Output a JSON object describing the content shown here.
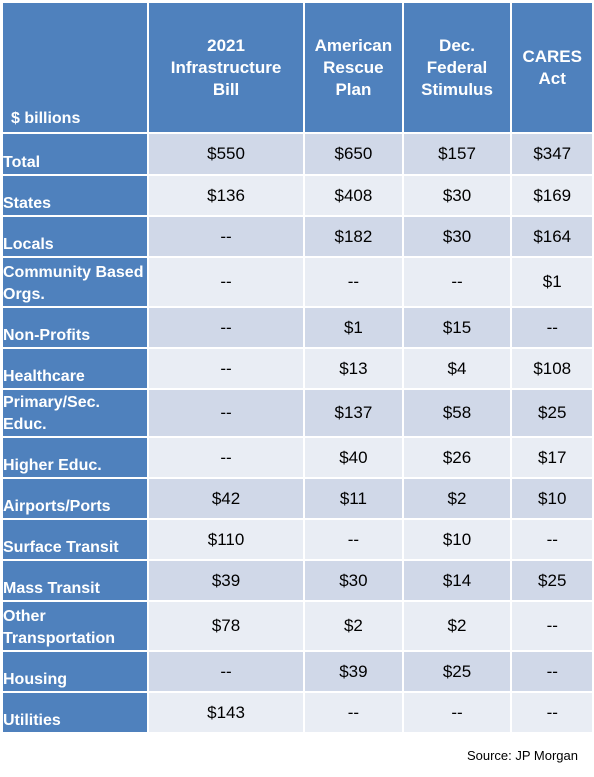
{
  "chart_data": {
    "type": "table",
    "unit_label": "$ billions",
    "columns": [
      "2021 Infrastructure Bill",
      "American Rescue Plan",
      "Dec. Federal Stimulus",
      "CARES Act"
    ],
    "rows": [
      {
        "label": "Total",
        "values": [
          "$550",
          "$650",
          "$157",
          "$347"
        ]
      },
      {
        "label": "States",
        "values": [
          "$136",
          "$408",
          "$30",
          "$169"
        ]
      },
      {
        "label": "Locals",
        "values": [
          "--",
          "$182",
          "$30",
          "$164"
        ]
      },
      {
        "label": "Community Based Orgs.",
        "values": [
          "--",
          "--",
          "--",
          "$1"
        ]
      },
      {
        "label": "Non-Profits",
        "values": [
          "--",
          "$1",
          "$15",
          "--"
        ]
      },
      {
        "label": "Healthcare",
        "values": [
          "--",
          "$13",
          "$4",
          "$108"
        ]
      },
      {
        "label": "Primary/Sec. Educ.",
        "values": [
          "--",
          "$137",
          "$58",
          "$25"
        ]
      },
      {
        "label": "Higher Educ.",
        "values": [
          "--",
          "$40",
          "$26",
          "$17"
        ]
      },
      {
        "label": "Airports/Ports",
        "values": [
          "$42",
          "$11",
          "$2",
          "$10"
        ]
      },
      {
        "label": "Surface Transit",
        "values": [
          "$110",
          "--",
          "$10",
          "--"
        ]
      },
      {
        "label": "Mass Transit",
        "values": [
          "$39",
          "$30",
          "$14",
          "$25"
        ]
      },
      {
        "label": "Other Transportation",
        "values": [
          "$78",
          "$2",
          "$2",
          "--"
        ]
      },
      {
        "label": "Housing",
        "values": [
          "--",
          "$39",
          "$25",
          "--"
        ]
      },
      {
        "label": "Utilities",
        "values": [
          "$143",
          "--",
          "--",
          "--"
        ]
      }
    ],
    "source": "Source: JP Morgan",
    "colors": {
      "header": "#4f81bd",
      "row_dark": "#d0d8e8",
      "row_light": "#e9edf4"
    }
  }
}
